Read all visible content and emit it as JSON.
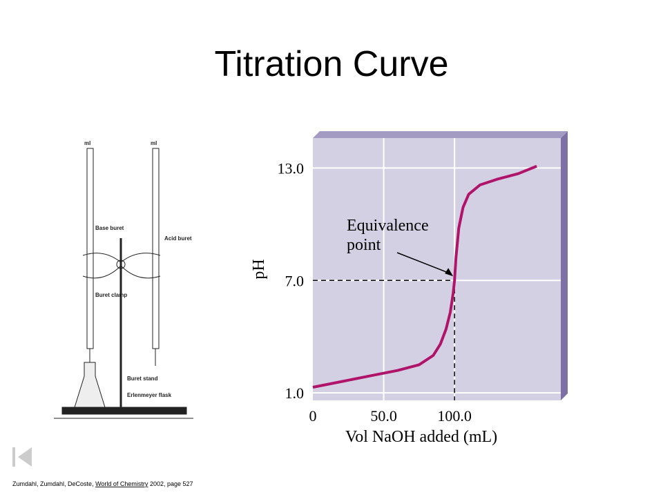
{
  "title": "Titration Curve",
  "apparatus": {
    "labels": [
      "ml",
      "ml",
      "Base buret",
      "Acid buret",
      "Buret clamp",
      "Buret stand",
      "Erlenmeyer flask"
    ]
  },
  "citation": {
    "authors": "Zumdahl, Zumdahl, DeCoste,",
    "book": "World of Chemistry",
    "rest": "2002, page 527"
  },
  "chart_data": {
    "type": "line",
    "xlabel": "Vol NaOH added (mL)",
    "ylabel": "pH",
    "x": [
      0,
      20,
      40,
      60,
      75,
      85,
      90,
      94,
      97,
      99,
      100,
      101,
      103,
      106,
      110,
      118,
      130,
      145,
      158
    ],
    "series": [
      {
        "name": "pH",
        "color": "#b0146a",
        "values": [
          1.3,
          1.6,
          1.9,
          2.2,
          2.5,
          3.0,
          3.6,
          4.4,
          5.3,
          6.3,
          7,
          8.2,
          9.8,
          10.9,
          11.6,
          12.1,
          12.4,
          12.7,
          13.1
        ]
      }
    ],
    "xlim": [
      0,
      175
    ],
    "ylim": [
      0.6,
      14.6
    ],
    "xticks": [
      0,
      {
        "value": 50,
        "label": "50.0"
      },
      {
        "value": 100,
        "label": "100.0"
      }
    ],
    "yticks": [
      {
        "value": 1,
        "label": "1.0"
      },
      {
        "value": 7,
        "label": "7.0"
      },
      {
        "value": 13,
        "label": "13.0"
      }
    ],
    "grid": true,
    "annotation": {
      "lines": [
        "Equivalence",
        "point"
      ],
      "x": 100,
      "y": 7
    }
  }
}
